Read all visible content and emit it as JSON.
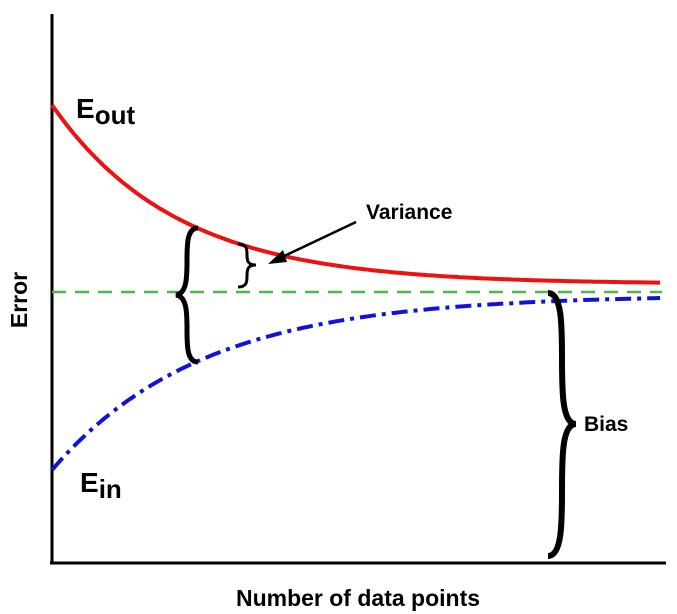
{
  "axes": {
    "x_label": "Number of data points",
    "y_label": "Error"
  },
  "curves": [
    {
      "label": "E",
      "subscript": "out"
    },
    {
      "label": "E",
      "subscript": "in"
    }
  ],
  "annotations": {
    "variance": "Variance",
    "bias": "Bias"
  }
}
